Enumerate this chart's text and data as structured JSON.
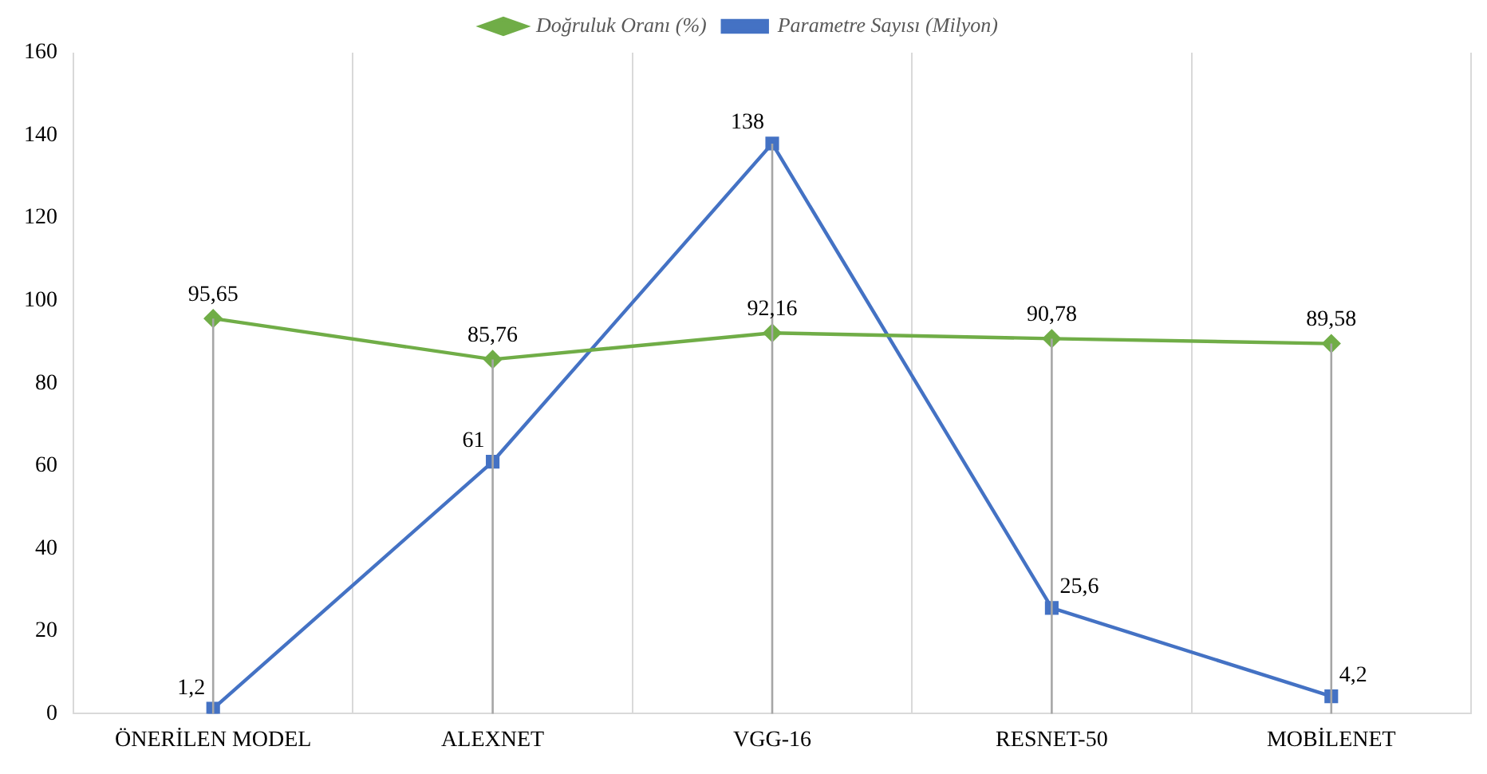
{
  "chart_data": {
    "type": "line",
    "categories": [
      "ÖNERİLEN MODEL",
      "ALEXNET",
      "VGG-16",
      "RESNET-50",
      "MOBİLENET"
    ],
    "series": [
      {
        "name": "Doğruluk Oranı (%)",
        "color": "#70ad47",
        "marker": "diamond",
        "values": [
          95.65,
          85.76,
          92.16,
          90.78,
          89.58
        ],
        "errors": [
          [
            0,
            95.65
          ],
          [
            0,
            85.76
          ],
          null,
          [
            0,
            90.78
          ],
          [
            0,
            89.58
          ]
        ],
        "value_labels": [
          "95,65",
          "85,76",
          "92,16",
          "90,78",
          "89,58"
        ]
      },
      {
        "name": "Parametre Sayısı (Milyon)",
        "color": "#4472c4",
        "marker": "square",
        "values": [
          1.2,
          61,
          138,
          25.6,
          4.2
        ],
        "errors": [
          null,
          null,
          [
            0,
            138
          ],
          null,
          null
        ],
        "value_labels": [
          "1,2",
          "61",
          "138",
          "25,6",
          "4,2"
        ]
      }
    ],
    "ylim": [
      0,
      160
    ],
    "yticks": [
      0,
      20,
      40,
      60,
      80,
      100,
      120,
      140,
      160
    ],
    "grid": "x",
    "legend": "top"
  }
}
